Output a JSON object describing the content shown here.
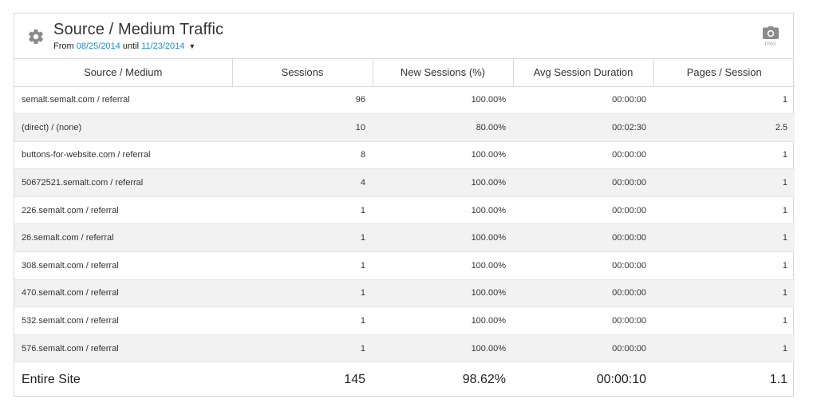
{
  "widget": {
    "title": "Source / Medium Traffic",
    "date_prefix": "From",
    "start_date": "08/25/2014",
    "date_mid": "until",
    "end_date": "11/23/2014",
    "export_label": "PNG"
  },
  "columns": [
    "Source / Medium",
    "Sessions",
    "New Sessions (%)",
    "Avg Session Duration",
    "Pages / Session"
  ],
  "rows": [
    [
      "semalt.semalt.com / referral",
      "96",
      "100.00%",
      "00:00:00",
      "1"
    ],
    [
      "(direct) / (none)",
      "10",
      "80.00%",
      "00:02:30",
      "2.5"
    ],
    [
      "buttons-for-website.com / referral",
      "8",
      "100.00%",
      "00:00:00",
      "1"
    ],
    [
      "50672521.semalt.com / referral",
      "4",
      "100.00%",
      "00:00:00",
      "1"
    ],
    [
      "226.semalt.com / referral",
      "1",
      "100.00%",
      "00:00:00",
      "1"
    ],
    [
      "26.semalt.com / referral",
      "1",
      "100.00%",
      "00:00:00",
      "1"
    ],
    [
      "308.semalt.com / referral",
      "1",
      "100.00%",
      "00:00:00",
      "1"
    ],
    [
      "470.semalt.com / referral",
      "1",
      "100.00%",
      "00:00:00",
      "1"
    ],
    [
      "532.semalt.com / referral",
      "1",
      "100.00%",
      "00:00:00",
      "1"
    ],
    [
      "576.semalt.com / referral",
      "1",
      "100.00%",
      "00:00:00",
      "1"
    ]
  ],
  "total": [
    "Entire Site",
    "145",
    "98.62%",
    "00:00:10",
    "1.1"
  ],
  "colors": {
    "link": "#1a8fc4",
    "border": "#d9d9d9",
    "stripe": "#f2f2f2"
  },
  "icons": {
    "settings": "gear-icon",
    "export": "camera-icon",
    "date_menu": "caret-down-icon"
  }
}
